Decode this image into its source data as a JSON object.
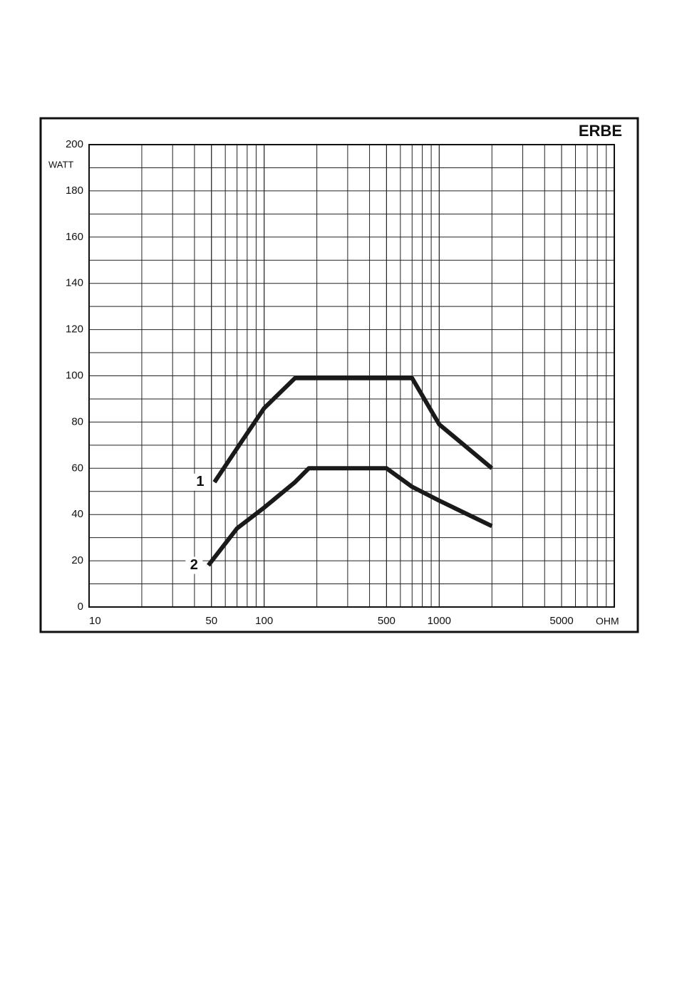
{
  "chart_data": {
    "type": "line",
    "brand": "ERBE",
    "y_label": "WATT",
    "x_label": "OHM",
    "xscale": "log",
    "xlim": [
      10,
      10000
    ],
    "ylim": [
      0,
      200
    ],
    "xticks": [
      10,
      50,
      100,
      500,
      1000,
      5000
    ],
    "yticks": [
      0,
      20,
      40,
      60,
      80,
      100,
      120,
      140,
      160,
      180,
      200
    ],
    "grid": true,
    "series": [
      {
        "name": "1",
        "color": "#1a1a1a",
        "x": [
          52,
          75,
          100,
          150,
          300,
          500,
          700,
          1000,
          2000
        ],
        "values": [
          54,
          72,
          86,
          99,
          99,
          99,
          99,
          79,
          60
        ]
      },
      {
        "name": "2",
        "color": "#1a1a1a",
        "x": [
          48,
          70,
          100,
          150,
          180,
          500,
          700,
          1000,
          2000
        ],
        "values": [
          18,
          34,
          43,
          54,
          60,
          60,
          52,
          46,
          35
        ]
      }
    ]
  }
}
